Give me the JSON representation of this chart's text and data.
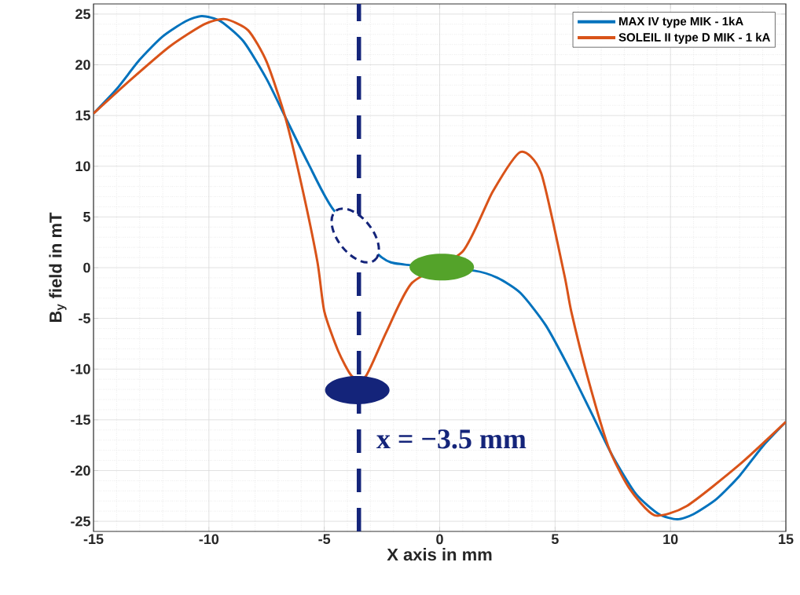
{
  "chart_data": {
    "type": "line",
    "xlabel": "X axis in mm",
    "ylabel": "B$_{y}$ field in mT",
    "xlim": [
      -15,
      15
    ],
    "ylim": [
      -26,
      26
    ],
    "xticks": [
      -15,
      -10,
      -5,
      0,
      5,
      10,
      15
    ],
    "yticks": [
      -25,
      -20,
      -15,
      -10,
      -5,
      0,
      5,
      10,
      15,
      20,
      25
    ],
    "grid": true,
    "legend": "top right",
    "marker": "none",
    "line_style": "solid",
    "series": [
      {
        "name": "MAX IV type MIK - 1kA",
        "color": "#0072bd",
        "x": [
          -15,
          -14,
          -13,
          -12,
          -11,
          -10.3,
          -9.5,
          -8.5,
          -7.5,
          -6.7,
          -5.7,
          -4.6,
          -2.5,
          -1.5,
          1.5,
          2.5,
          3.5,
          4.6,
          5.7,
          6.7,
          7.5,
          8.5,
          9.5,
          10.3,
          11,
          12,
          13,
          14,
          15
        ],
        "values": [
          15.2,
          17.6,
          20.5,
          22.8,
          24.3,
          24.8,
          24.3,
          22.3,
          18.6,
          14.9,
          10.3,
          5.7,
          1.0,
          0.3,
          -0.3,
          -1.0,
          -2.5,
          -5.7,
          -10.3,
          -14.9,
          -18.6,
          -22.3,
          -24.3,
          -24.8,
          -24.3,
          -22.8,
          -20.5,
          -17.6,
          -15.2
        ]
      },
      {
        "name": "SOLEIL II type D MIK - 1 kA",
        "color": "#d95319",
        "x": [
          -15,
          -13.4,
          -11.7,
          -10.2,
          -9.3,
          -8.3,
          -7.5,
          -6.7,
          -6.0,
          -5.3,
          -5.0,
          -4.4,
          -3.8,
          -3.2,
          -2.3,
          -1.2,
          1.0,
          2.3,
          3.5,
          4.4,
          5.4,
          5.7,
          6.4,
          7.3,
          8.2,
          9.3,
          10.7,
          13.0,
          15
        ],
        "values": [
          15.2,
          18.5,
          21.8,
          24.0,
          24.5,
          23.4,
          20.3,
          14.9,
          8.3,
          0.6,
          -4.3,
          -8.2,
          -10.7,
          -10.7,
          -6.3,
          -1.5,
          1.6,
          7.5,
          11.4,
          9.3,
          -0.7,
          -4.3,
          -10.7,
          -17.6,
          -21.7,
          -24.4,
          -23.5,
          -19.4,
          -15.2
        ]
      }
    ],
    "ref_lines": [
      {
        "axis": "x",
        "value": -3.5,
        "label": "x = −3.5 mm",
        "color": "#14247a",
        "line_style": "dashed"
      }
    ]
  }
}
